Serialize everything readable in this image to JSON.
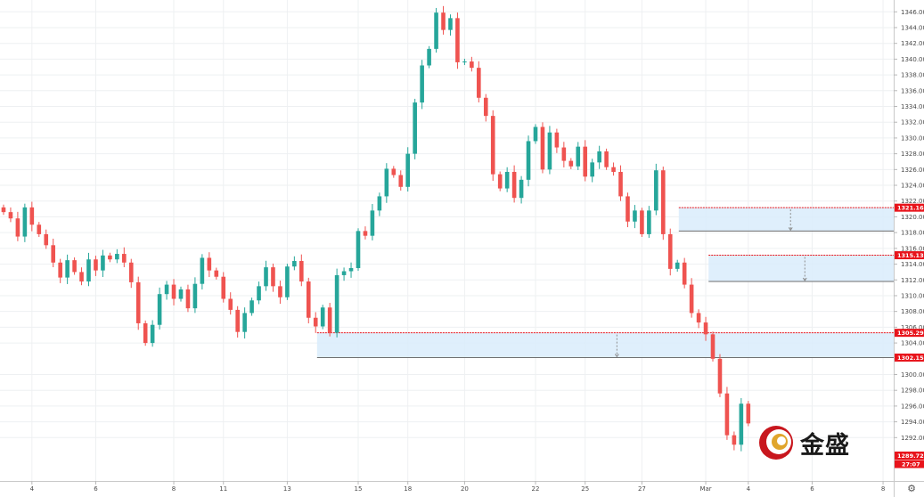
{
  "chart_data": {
    "type": "candlestick",
    "title": "",
    "xlabel": "",
    "ylabel": "",
    "ylim": [
      1286.5,
      1347.5
    ],
    "colors": {
      "up": "#26a69a",
      "down": "#ef5350",
      "zone_fill": "#d9ecfb",
      "zone_border": "#7a7a7a",
      "tag": "#e8141b",
      "axis_text": "#4a4a4a"
    },
    "y_ticks": [
      "1292.00",
      "1294.00",
      "1296.00",
      "1298.00",
      "1300.00",
      "1304.00",
      "1306.00",
      "1308.00",
      "1310.00",
      "1312.00",
      "1314.00",
      "1316.00",
      "1318.00",
      "1320.00",
      "1322.00",
      "1324.00",
      "1326.00",
      "1328.00",
      "1330.00",
      "1332.00",
      "1334.00",
      "1336.00",
      "1338.00",
      "1340.00",
      "1342.00",
      "1344.00",
      "1346.00"
    ],
    "x_ticks": [
      {
        "label": "4",
        "slot": 4
      },
      {
        "label": "6",
        "slot": 13
      },
      {
        "label": "8",
        "slot": 24
      },
      {
        "label": "11",
        "slot": 31
      },
      {
        "label": "13",
        "slot": 40
      },
      {
        "label": "15",
        "slot": 50
      },
      {
        "label": "18",
        "slot": 57
      },
      {
        "label": "20",
        "slot": 65
      },
      {
        "label": "22",
        "slot": 75
      },
      {
        "label": "25",
        "slot": 82
      },
      {
        "label": "27",
        "slot": 90
      },
      {
        "label": "Mar",
        "slot": 99
      },
      {
        "label": "4",
        "slot": 105
      },
      {
        "label": "6",
        "slot": 114
      },
      {
        "label": "8",
        "slot": 124
      }
    ],
    "close_path": [
      1320.6,
      1319.8,
      1317.5,
      1321.2,
      1319.0,
      1317.8,
      1316.4,
      1314.2,
      1312.3,
      1314.5,
      1313.0,
      1311.8,
      1314.6,
      1313.2,
      1315.1,
      1314.6,
      1315.3,
      1314.2,
      1311.7,
      1306.5,
      1304.0,
      1306.3,
      1310.2,
      1311.4,
      1309.6,
      1310.8,
      1308.4,
      1311.5,
      1314.8,
      1313.2,
      1312.4,
      1309.6,
      1308.2,
      1305.4,
      1307.8,
      1309.4,
      1311.2,
      1313.6,
      1311.2,
      1309.8,
      1313.7,
      1314.4,
      1311.8,
      1307.2,
      1306.1,
      1308.5,
      1305.3,
      1312.6,
      1313.1,
      1313.5,
      1318.2,
      1317.6,
      1320.8,
      1322.6,
      1326.1,
      1325.3,
      1323.8,
      1328.0,
      1334.5,
      1339.2,
      1341.3,
      1345.9,
      1343.7,
      1345.2,
      1339.6,
      1339.7,
      1338.9,
      1335.1,
      1332.8,
      1325.4,
      1323.6,
      1325.7,
      1322.4,
      1324.7,
      1329.6,
      1331.4,
      1326.0,
      1330.7,
      1328.8,
      1327.1,
      1326.4,
      1328.9,
      1325.1,
      1326.9,
      1328.3,
      1326.3,
      1325.7,
      1322.6,
      1319.4,
      1320.8,
      1317.8,
      1320.8,
      1325.9,
      1317.8,
      1313.4,
      1314.2,
      1311.4,
      1307.8,
      1306.6,
      1305.1,
      1302.0,
      1297.6,
      1292.3,
      1291.1,
      1296.3,
      1293.8
    ],
    "zones": [
      {
        "top": 1321.16,
        "bottom": 1318.2,
        "start_slot": 95.2
      },
      {
        "top": 1315.13,
        "bottom": 1311.8,
        "start_slot": 99.4
      },
      {
        "top": 1305.29,
        "bottom": 1302.15,
        "start_slot": 44.2
      }
    ],
    "price_tags": [
      "1321.16",
      "1315.13",
      "1305.29",
      "1302.15",
      "1289.72",
      "27:07"
    ],
    "last_price": "1289.72",
    "countdown": "27:07"
  },
  "logo": {
    "text": "金盛"
  },
  "toolbar": {
    "settings_icon": "gear-icon"
  }
}
